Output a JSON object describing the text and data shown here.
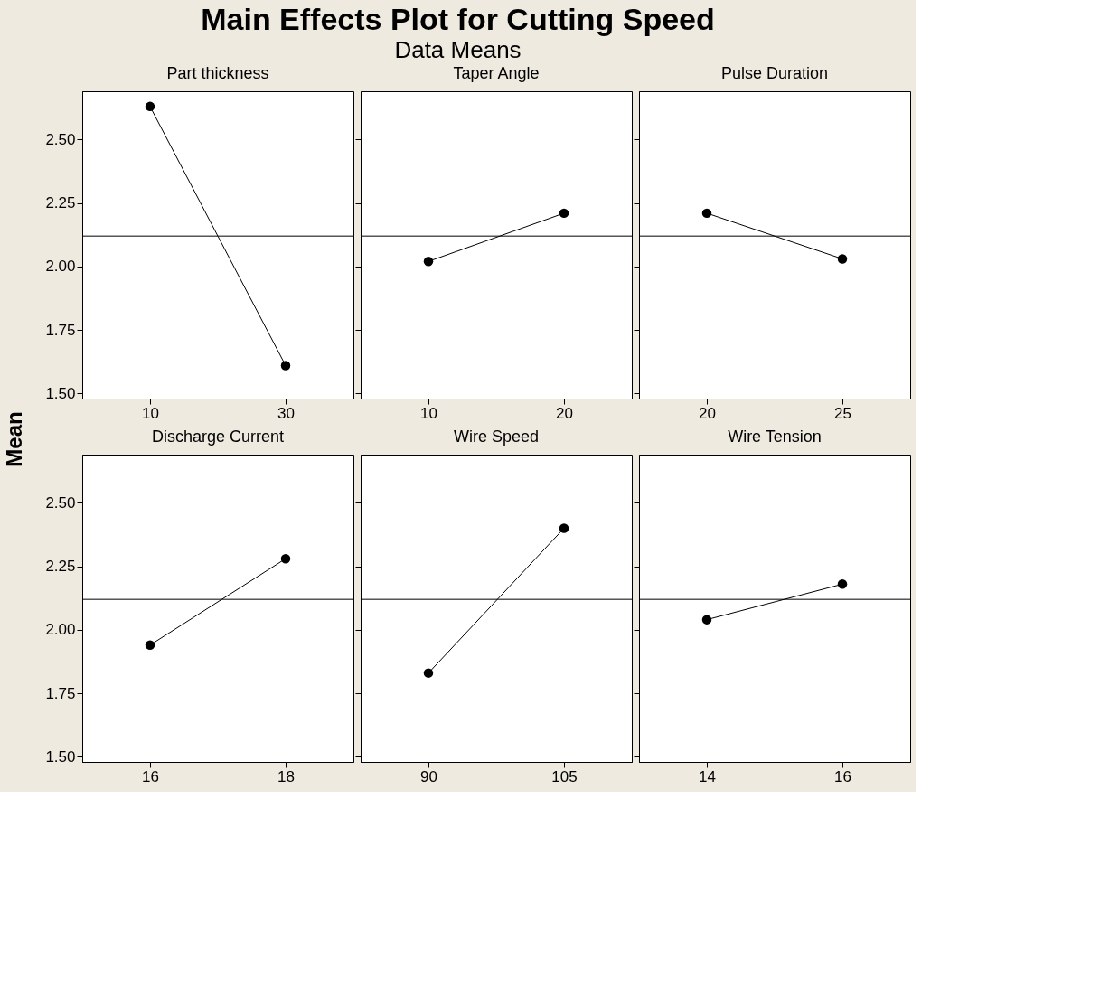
{
  "chart_data": [
    {
      "type": "other",
      "title": "Main Effects Plot for Cutting Speed",
      "subtitle": "Data Means",
      "ylabel": "Mean"
    },
    {
      "type": "line",
      "title": "Part thickness",
      "categories": [
        "10",
        "30"
      ],
      "values": [
        2.63,
        1.61
      ],
      "color": "#000000",
      "marker": "circle",
      "ylim": [
        1.48,
        2.69
      ],
      "yticks": [
        {
          "value": 1.5,
          "label": "1.50"
        },
        1.75,
        {
          "value": 2,
          "label": "2.00"
        },
        2.25,
        {
          "value": 2.5,
          "label": "2.50"
        }
      ],
      "ref_lines": [
        {
          "axis": "y",
          "value": 2.12,
          "color": "#000000"
        }
      ],
      "grid": false
    },
    {
      "type": "line",
      "title": "Taper Angle",
      "categories": [
        "10",
        "20"
      ],
      "values": [
        2.02,
        2.21
      ],
      "color": "#000000",
      "marker": "circle",
      "ylim": [
        1.48,
        2.69
      ],
      "yticks": [
        1.5,
        1.75,
        2,
        2.25,
        2.5
      ],
      "tick_labels": "x",
      "ref_lines": [
        {
          "axis": "y",
          "value": 2.12,
          "color": "#000000"
        }
      ],
      "grid": false
    },
    {
      "type": "line",
      "title": "Pulse Duration",
      "categories": [
        "20",
        "25"
      ],
      "values": [
        2.21,
        2.03
      ],
      "color": "#000000",
      "marker": "circle",
      "ylim": [
        1.48,
        2.69
      ],
      "yticks": [
        1.5,
        1.75,
        2,
        2.25,
        2.5
      ],
      "tick_labels": "x",
      "ref_lines": [
        {
          "axis": "y",
          "value": 2.12,
          "color": "#000000"
        }
      ],
      "grid": false
    },
    {
      "type": "line",
      "title": "Discharge Current",
      "categories": [
        "16",
        "18"
      ],
      "values": [
        1.94,
        2.28
      ],
      "color": "#000000",
      "marker": "circle",
      "ylim": [
        1.48,
        2.69
      ],
      "yticks": [
        {
          "value": 1.5,
          "label": "1.50"
        },
        1.75,
        {
          "value": 2,
          "label": "2.00"
        },
        2.25,
        {
          "value": 2.5,
          "label": "2.50"
        }
      ],
      "ref_lines": [
        {
          "axis": "y",
          "value": 2.12,
          "color": "#000000"
        }
      ],
      "grid": false
    },
    {
      "type": "line",
      "title": "Wire Speed",
      "categories": [
        "90",
        "105"
      ],
      "values": [
        1.83,
        2.4
      ],
      "color": "#000000",
      "marker": "circle",
      "ylim": [
        1.48,
        2.69
      ],
      "yticks": [
        1.5,
        1.75,
        2,
        2.25,
        2.5
      ],
      "tick_labels": "x",
      "ref_lines": [
        {
          "axis": "y",
          "value": 2.12,
          "color": "#000000"
        }
      ],
      "grid": false
    },
    {
      "type": "line",
      "title": "Wire Tension",
      "categories": [
        "14",
        "16"
      ],
      "values": [
        2.04,
        2.18
      ],
      "color": "#000000",
      "marker": "circle",
      "ylim": [
        1.48,
        2.69
      ],
      "yticks": [
        1.5,
        1.75,
        2,
        2.25,
        2.5
      ],
      "tick_labels": "x",
      "ref_lines": [
        {
          "axis": "y",
          "value": 2.12,
          "color": "#000000"
        }
      ],
      "grid": false
    }
  ]
}
